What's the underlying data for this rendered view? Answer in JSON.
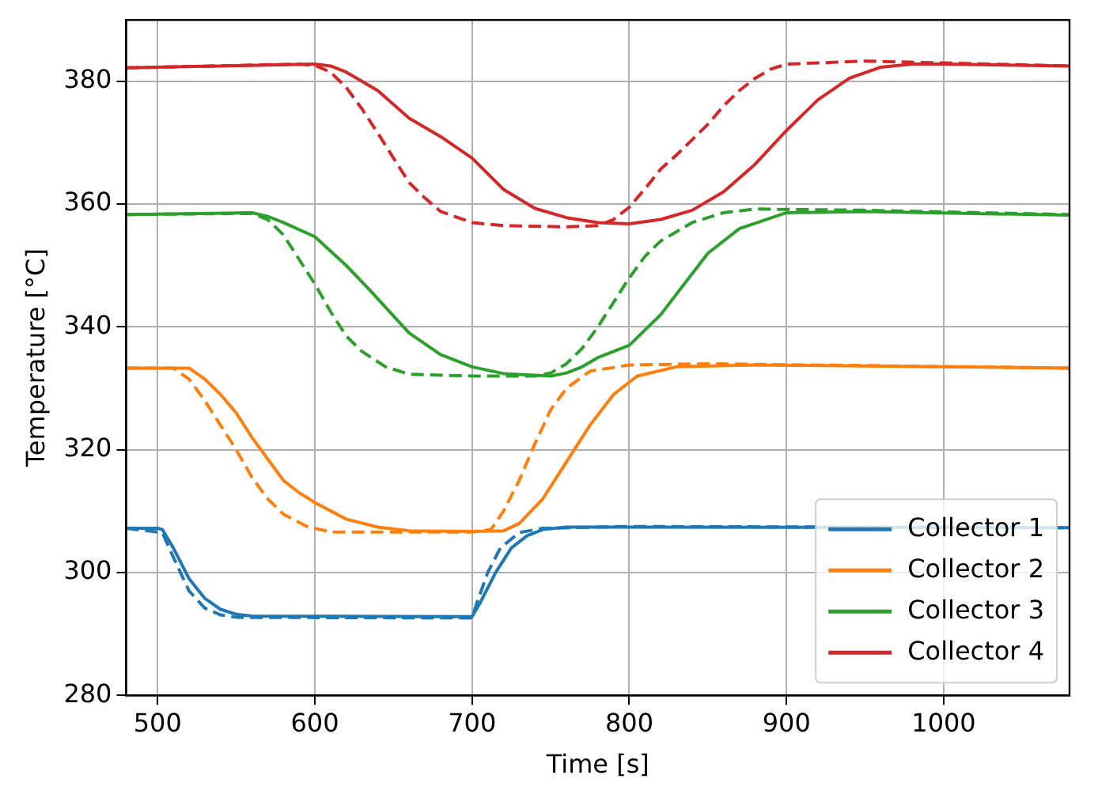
{
  "chart_data": {
    "type": "line",
    "xlabel": "Time [s]",
    "ylabel": "Temperature [°C]",
    "xlim": [
      480,
      1080
    ],
    "xticks": [
      500,
      600,
      700,
      800,
      900,
      1000
    ],
    "ylim": [
      280,
      390
    ],
    "yticks": [
      280,
      300,
      320,
      340,
      360,
      380
    ],
    "grid": true,
    "legend": "bottom right",
    "marker": "none",
    "series": [
      {
        "name": "Collector 1",
        "color": "#1f77b4",
        "line_style": "solid",
        "x": [
          480,
          500,
          503,
          510,
          520,
          530,
          540,
          550,
          560,
          700,
          705,
          715,
          725,
          735,
          745,
          760,
          1080
        ],
        "values": [
          307.2,
          307.2,
          307.0,
          304,
          299,
          295.8,
          294,
          293.2,
          292.9,
          292.8,
          295,
          300,
          304,
          306,
          307,
          307.4,
          307.3
        ]
      },
      {
        "name": "Collector 2",
        "color": "#ff7f0e",
        "line_style": "solid",
        "x": [
          480,
          520,
          530,
          540,
          550,
          560,
          570,
          580,
          590,
          600,
          620,
          640,
          660,
          700,
          720,
          730,
          745,
          760,
          775,
          790,
          805,
          830,
          880,
          1080
        ],
        "values": [
          333.3,
          333.3,
          331.5,
          329,
          326,
          322,
          318.5,
          315,
          313,
          311.4,
          308.7,
          307.4,
          306.8,
          306.7,
          306.8,
          308,
          312,
          318,
          324,
          329,
          332,
          333.5,
          333.8,
          333.3
        ]
      },
      {
        "name": "Collector 3",
        "color": "#2ca02c",
        "line_style": "solid",
        "x": [
          480,
          560,
          570,
          580,
          600,
          620,
          635,
          660,
          680,
          700,
          720,
          750,
          760,
          770,
          780,
          790,
          800,
          820,
          835,
          850,
          870,
          900,
          950,
          1080
        ],
        "values": [
          358.3,
          358.6,
          358,
          357,
          354.7,
          350,
          346,
          339,
          335.5,
          333.5,
          332.4,
          332,
          332.5,
          333.5,
          335,
          336,
          337,
          342,
          347,
          352,
          356,
          358.6,
          358.8,
          358.2
        ]
      },
      {
        "name": "Collector 4",
        "color": "#d62728",
        "line_style": "solid",
        "x": [
          480,
          600,
          610,
          620,
          640,
          660,
          680,
          700,
          720,
          740,
          760,
          780,
          800,
          820,
          840,
          860,
          880,
          900,
          920,
          940,
          960,
          980,
          1000,
          1080
        ],
        "values": [
          382.2,
          382.8,
          382.5,
          381.5,
          378.5,
          374,
          371,
          367.5,
          362.4,
          359.3,
          357.8,
          357,
          356.8,
          357.5,
          359,
          362,
          366.5,
          372,
          377,
          380.5,
          382.3,
          382.8,
          382.8,
          382.5
        ]
      },
      {
        "color": "#1f77b4",
        "line_style": "dashed",
        "x": [
          480,
          503,
          510,
          520,
          530,
          540,
          550,
          700,
          703,
          710,
          718,
          730,
          745,
          800,
          1080
        ],
        "values": [
          307.2,
          306.5,
          302.5,
          297,
          294.2,
          293.1,
          292.7,
          292.6,
          295,
          300,
          304,
          306.5,
          307.2,
          307.5,
          307.3
        ]
      },
      {
        "color": "#ff7f0e",
        "line_style": "dashed",
        "x": [
          480,
          510,
          520,
          530,
          540,
          550,
          560,
          570,
          580,
          595,
          610,
          700,
          712,
          720,
          730,
          740,
          750,
          760,
          775,
          800,
          850,
          1080
        ],
        "values": [
          333.3,
          333.3,
          331.5,
          328,
          324,
          320,
          315.5,
          312,
          309.5,
          307.5,
          306.6,
          306.6,
          307,
          310,
          315,
          321,
          326.5,
          330,
          332.8,
          333.8,
          334,
          333.3
        ]
      },
      {
        "color": "#2ca02c",
        "line_style": "dashed",
        "x": [
          480,
          560,
          570,
          580,
          590,
          600,
          610,
          620,
          630,
          645,
          660,
          700,
          740,
          750,
          760,
          770,
          780,
          790,
          800,
          810,
          820,
          840,
          860,
          880,
          950,
          1080
        ],
        "values": [
          358.3,
          358.5,
          357.5,
          355,
          351,
          347,
          342.5,
          338.5,
          336,
          333.5,
          332.3,
          332,
          332,
          332.5,
          334,
          336.5,
          340,
          344,
          348,
          351.5,
          354,
          357,
          358.6,
          359.2,
          359,
          358.3
        ]
      },
      {
        "color": "#d62728",
        "line_style": "dashed",
        "x": [
          480,
          590,
          600,
          610,
          620,
          630,
          640,
          650,
          660,
          670,
          680,
          700,
          720,
          760,
          780,
          790,
          800,
          810,
          820,
          830,
          840,
          850,
          860,
          870,
          880,
          890,
          900,
          950,
          1080
        ],
        "values": [
          382.2,
          382.8,
          382.6,
          381.5,
          379,
          375.5,
          371.6,
          367.5,
          363.5,
          361,
          358.8,
          357,
          356.5,
          356.3,
          356.5,
          357.5,
          359.5,
          362.5,
          365.7,
          368,
          370.5,
          373,
          376,
          378.5,
          380.5,
          382,
          382.8,
          383.3,
          382.5
        ]
      }
    ]
  }
}
